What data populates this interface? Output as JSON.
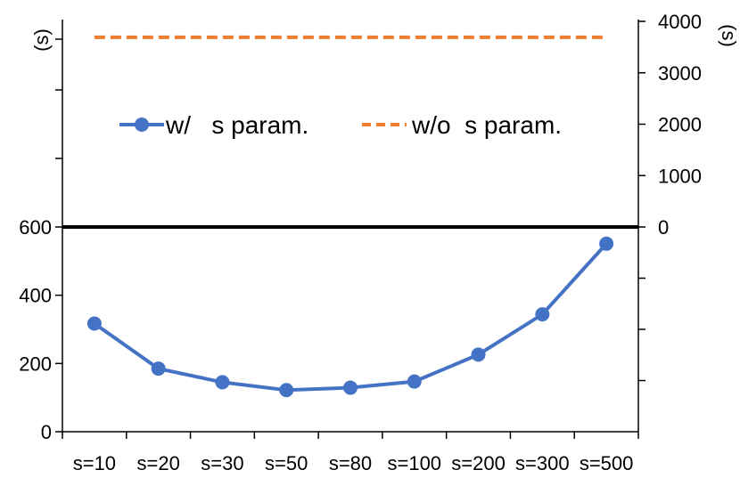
{
  "chart_data": {
    "type": "line",
    "categories": [
      "s=10",
      "s=20",
      "s=30",
      "s=50",
      "s=80",
      "s=100",
      "s=200",
      "s=300",
      "s=500"
    ],
    "series": [
      {
        "name": "w/   s param.",
        "axis": "left",
        "color": "#4472C4",
        "style": "solid-with-markers",
        "values": [
          317,
          185,
          145,
          122,
          129,
          147,
          226,
          344,
          551
        ]
      },
      {
        "name": "w/o  s param.",
        "axis": "right",
        "color": "#ED7D31",
        "style": "dashed",
        "values": [
          3690,
          3690,
          3690,
          3690,
          3690,
          3690,
          3690,
          3690,
          3690
        ]
      }
    ],
    "left_axis": {
      "unit": "(s)",
      "ticks": [
        0,
        200,
        400,
        600
      ],
      "ylim": [
        0,
        600
      ],
      "extra_unlabeled_ticks": 3
    },
    "right_axis": {
      "unit": "(s)",
      "ticks": [
        0,
        1000,
        2000,
        3000,
        4000
      ],
      "ylim": [
        0,
        4000
      ],
      "extra_unlabeled_ticks": 3
    },
    "separator_line": "black horizontal line at left 600 / right 0",
    "legend": {
      "placement": "upper-middle",
      "entries": [
        "w/   s param.",
        "w/o  s param."
      ]
    },
    "grid": false
  }
}
